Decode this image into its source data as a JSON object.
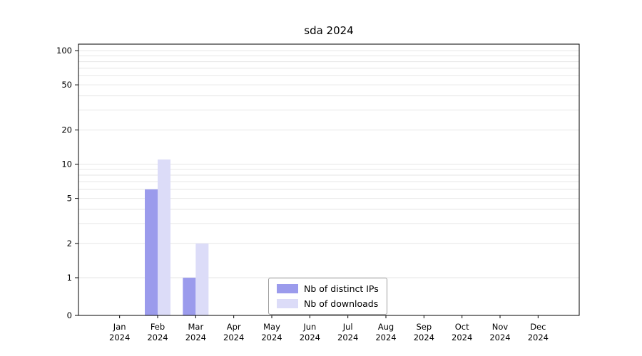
{
  "title": "sda 2024",
  "chart_data": {
    "type": "bar",
    "title": "sda 2024",
    "xlabel": "",
    "ylabel": "",
    "categories": [
      "Jan",
      "Feb",
      "Mar",
      "Apr",
      "May",
      "Jun",
      "Jul",
      "Aug",
      "Sep",
      "Oct",
      "Nov",
      "Dec"
    ],
    "year_label": "2024",
    "series": [
      {
        "name": "Nb of distinct IPs",
        "color": "#9b9bec",
        "values": [
          0,
          6,
          1,
          0,
          0,
          0,
          0,
          0,
          0,
          0,
          0,
          0
        ]
      },
      {
        "name": "Nb of downloads",
        "color": "#dcdcf8",
        "values": [
          0,
          11,
          2,
          0,
          0,
          0,
          0,
          0,
          0,
          0,
          0,
          0
        ]
      }
    ],
    "y_scale": "symlog",
    "y_ticks": [
      0,
      1,
      2,
      5,
      10,
      20,
      50,
      100
    ],
    "ylim": [
      0,
      112
    ],
    "grid": true,
    "legend_position": "lower center",
    "axis_color": "#000000",
    "grid_color": "#e6e6e6"
  }
}
